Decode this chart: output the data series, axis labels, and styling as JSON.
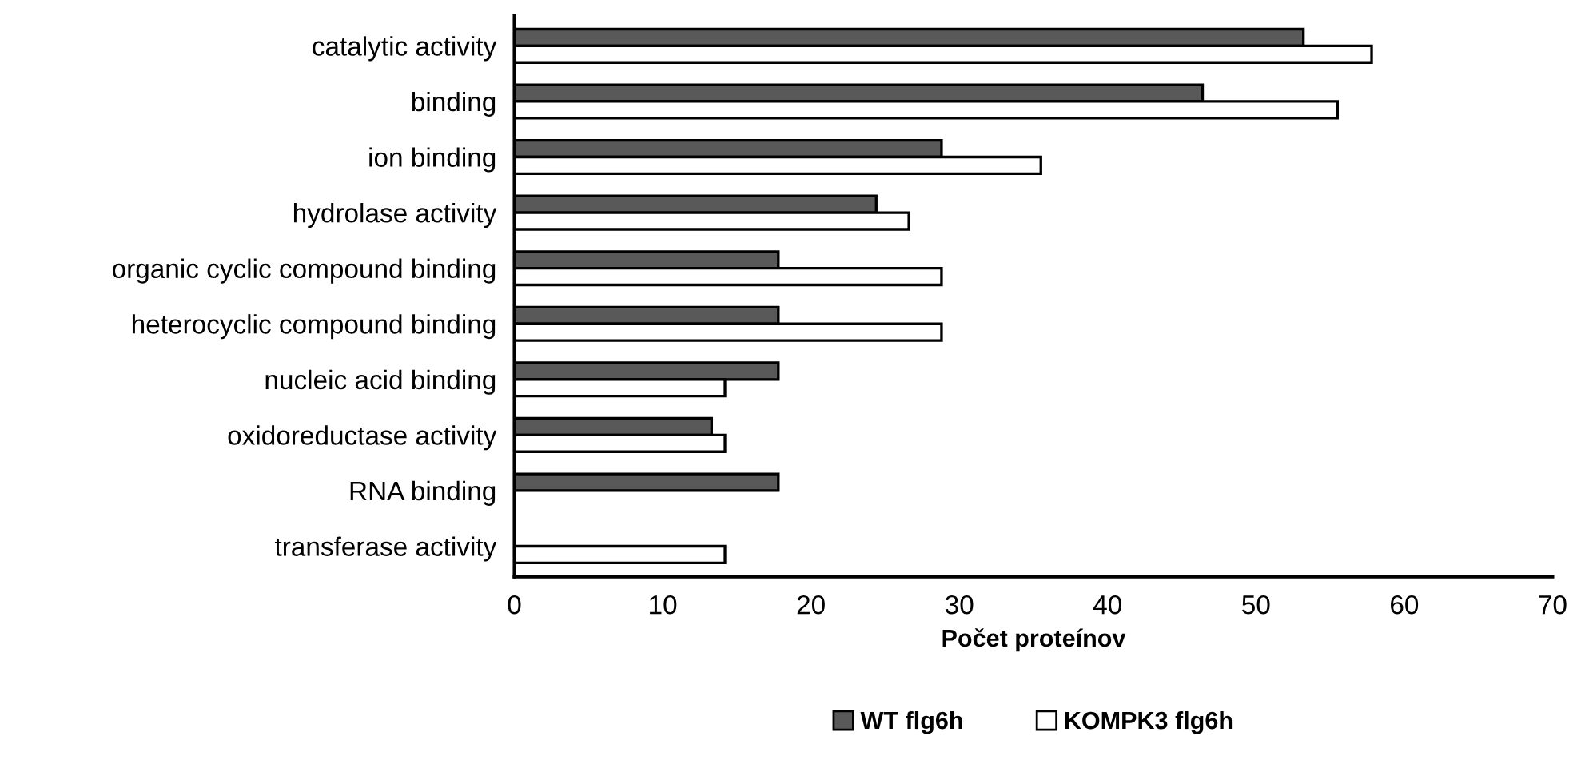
{
  "chart_data": {
    "type": "bar",
    "orientation": "horizontal",
    "xlabel": "Počet proteínov",
    "categories": [
      "catalytic activity",
      "binding",
      "ion binding",
      "hydrolase activity",
      "organic cyclic compound binding",
      "heterocyclic compound binding",
      "nucleic acid binding",
      "oxidoreductase activity",
      "RNA binding",
      "transferase activity"
    ],
    "series": [
      {
        "name": "WT flg6h",
        "color": "#595959",
        "values": [
          53.2,
          46.4,
          28.8,
          24.4,
          17.8,
          17.8,
          17.8,
          13.3,
          17.8,
          null
        ]
      },
      {
        "name": "KOMPK3 flg6h",
        "color": "#ffffff",
        "values": [
          57.8,
          55.5,
          35.5,
          26.6,
          28.8,
          28.8,
          14.2,
          14.2,
          null,
          14.2
        ]
      }
    ],
    "xlim": [
      0,
      70
    ],
    "xticks": [
      0,
      10,
      20,
      30,
      40,
      50,
      60,
      70
    ],
    "grid": false,
    "legend": "bottom"
  }
}
